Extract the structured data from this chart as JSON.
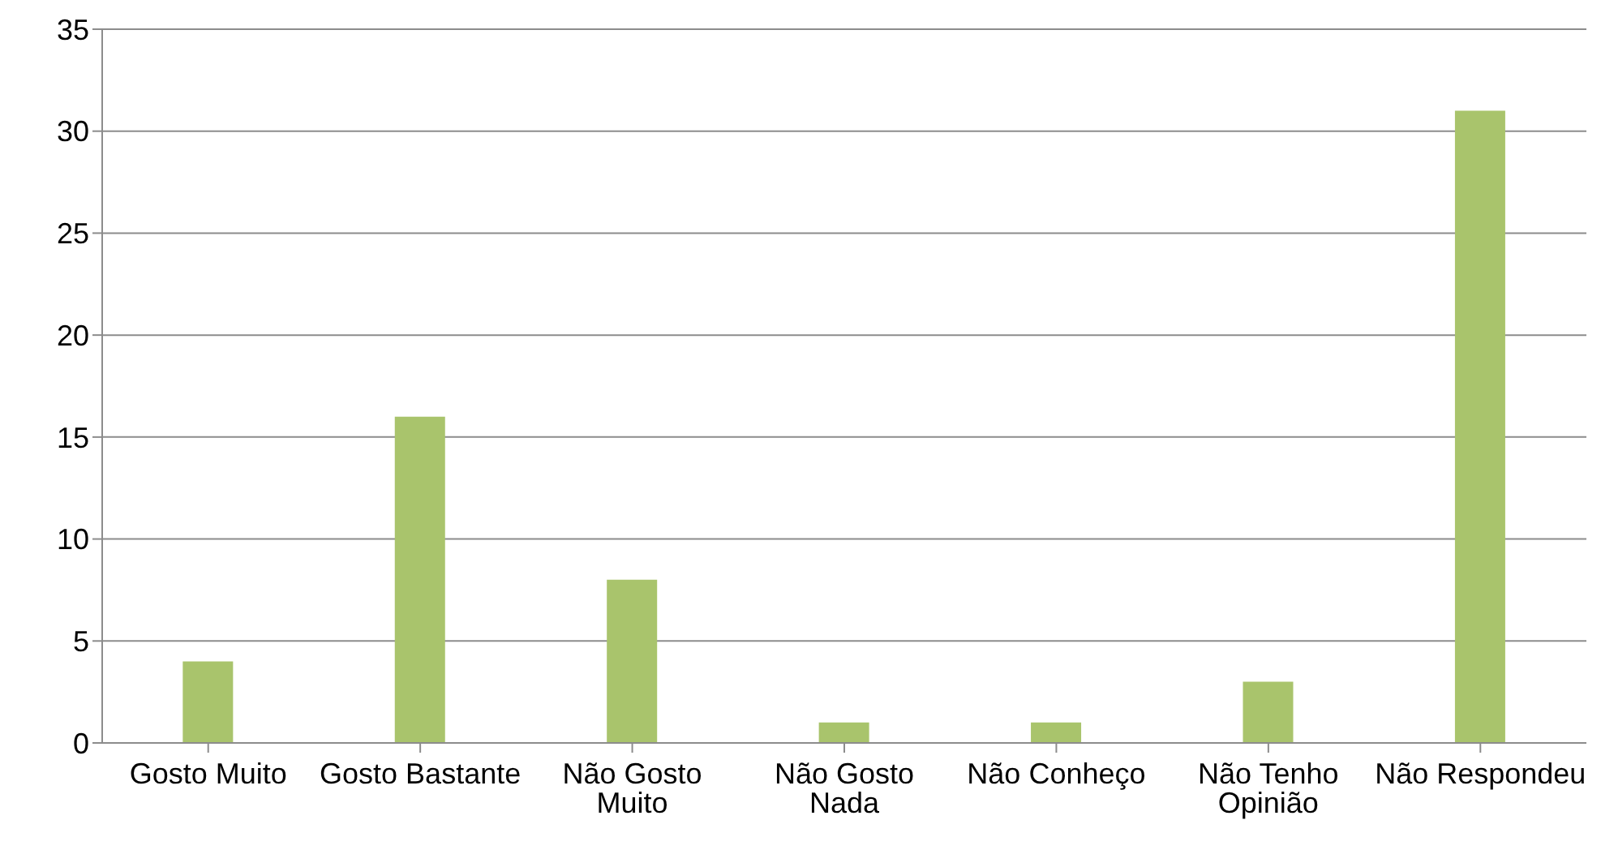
{
  "chart_data": {
    "type": "bar",
    "categories": [
      "Gosto Muito",
      "Gosto Bastante",
      "Não Gosto Muito",
      "Não Gosto Nada",
      "Não Conheço",
      "Não Tenho Opinião",
      "Não Respondeu"
    ],
    "values": [
      4,
      16,
      8,
      1,
      1,
      3,
      31
    ],
    "color": "#a9c46c",
    "ylim": [
      0,
      35
    ],
    "yticks": [
      0,
      5,
      10,
      15,
      20,
      25,
      30,
      35
    ],
    "grid": "y",
    "legend": false
  }
}
